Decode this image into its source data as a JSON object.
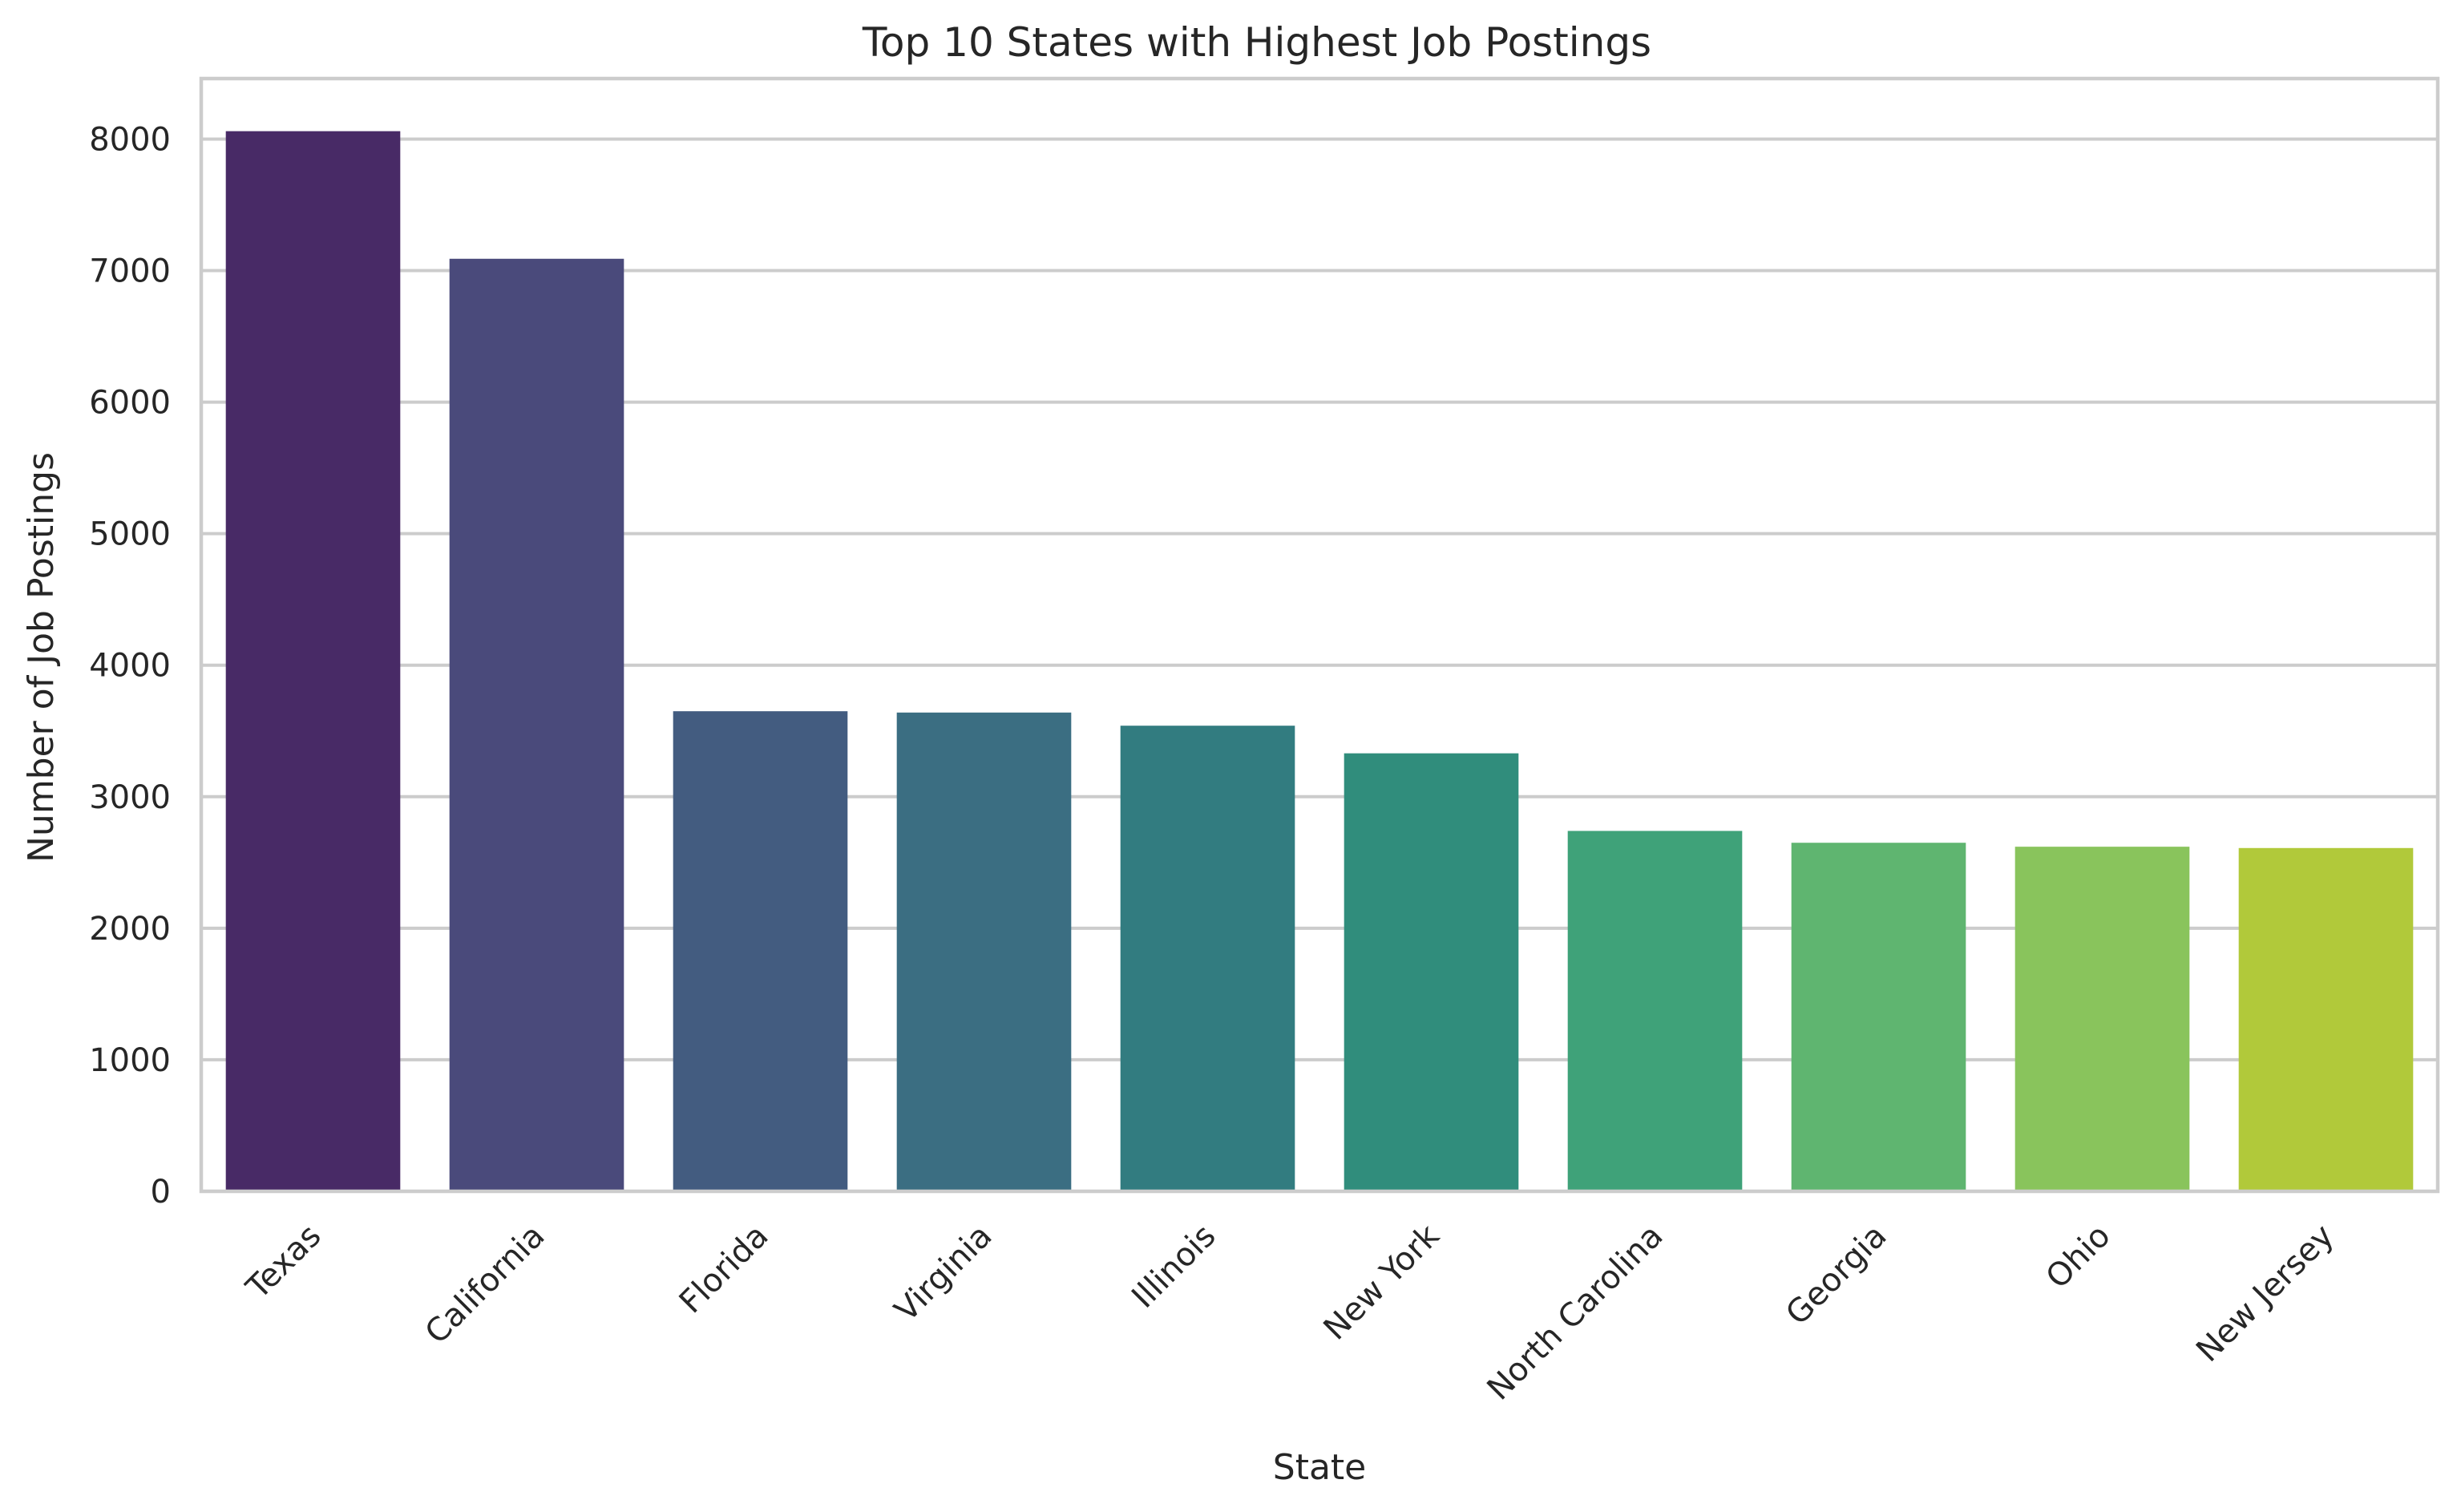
{
  "chart_data": {
    "type": "bar",
    "title": "Top 10 States with Highest Job Postings",
    "xlabel": "State",
    "ylabel": "Number of Job Postings",
    "categories": [
      "Texas",
      "California",
      "Florida",
      "Virginia",
      "Illinois",
      "New York",
      "North Carolina",
      "Georgia",
      "Ohio",
      "New Jersey"
    ],
    "values": [
      8060,
      7090,
      3650,
      3640,
      3540,
      3330,
      2740,
      2650,
      2620,
      2610
    ],
    "ylim": [
      0,
      8460
    ],
    "yticks": [
      0,
      1000,
      2000,
      3000,
      4000,
      5000,
      6000,
      7000,
      8000
    ],
    "colors": [
      "#482a66",
      "#4a4a7b",
      "#435c80",
      "#3b6e82",
      "#327c80",
      "#308d7c",
      "#3fa279",
      "#5fb570",
      "#89c45c",
      "#b1c93a"
    ],
    "grid": "horizontal",
    "legend": "none"
  }
}
